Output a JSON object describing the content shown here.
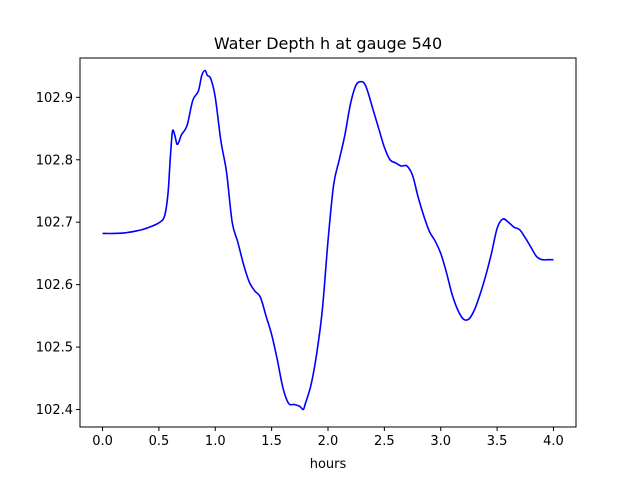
{
  "chart_data": {
    "type": "line",
    "title": "Water Depth h at gauge 540",
    "xlabel": "hours",
    "ylabel": "",
    "xlim": [
      -0.2,
      4.2
    ],
    "ylim": [
      102.372,
      102.963
    ],
    "xticks": [
      0.0,
      0.5,
      1.0,
      1.5,
      2.0,
      2.5,
      3.0,
      3.5,
      4.0
    ],
    "xtick_labels": [
      "0.0",
      "0.5",
      "1.0",
      "1.5",
      "2.0",
      "2.5",
      "3.0",
      "3.5",
      "4.0"
    ],
    "yticks": [
      102.4,
      102.5,
      102.6,
      102.7,
      102.8,
      102.9
    ],
    "ytick_labels": [
      "102.4",
      "102.5",
      "102.6",
      "102.7",
      "102.8",
      "102.9"
    ],
    "grid": false,
    "legend": "none",
    "series": [
      {
        "color": "#0000ff",
        "x": [
          0.0,
          0.1,
          0.2,
          0.3,
          0.4,
          0.5,
          0.55,
          0.58,
          0.6,
          0.62,
          0.64,
          0.66,
          0.68,
          0.7,
          0.75,
          0.8,
          0.85,
          0.88,
          0.91,
          0.93,
          0.96,
          1.0,
          1.05,
          1.1,
          1.15,
          1.2,
          1.25,
          1.3,
          1.35,
          1.4,
          1.45,
          1.5,
          1.55,
          1.6,
          1.65,
          1.7,
          1.75,
          1.78,
          1.8,
          1.85,
          1.9,
          1.95,
          2.0,
          2.05,
          2.1,
          2.15,
          2.2,
          2.25,
          2.3,
          2.33,
          2.36,
          2.4,
          2.45,
          2.5,
          2.55,
          2.6,
          2.65,
          2.7,
          2.75,
          2.8,
          2.85,
          2.9,
          2.95,
          3.0,
          3.05,
          3.1,
          3.15,
          3.2,
          3.25,
          3.3,
          3.35,
          3.4,
          3.45,
          3.5,
          3.55,
          3.6,
          3.65,
          3.7,
          3.75,
          3.8,
          3.85,
          3.9,
          3.95,
          4.0
        ],
        "y": [
          102.682,
          102.682,
          102.683,
          102.686,
          102.691,
          102.699,
          102.71,
          102.745,
          102.8,
          102.845,
          102.84,
          102.825,
          102.83,
          102.84,
          102.855,
          102.895,
          102.91,
          102.935,
          102.943,
          102.935,
          102.93,
          102.9,
          102.83,
          102.78,
          102.7,
          102.668,
          102.633,
          102.605,
          102.59,
          102.58,
          102.55,
          102.52,
          102.48,
          102.435,
          102.41,
          102.408,
          102.405,
          102.4,
          102.41,
          102.44,
          102.49,
          102.56,
          102.67,
          102.76,
          102.8,
          102.84,
          102.89,
          102.92,
          102.925,
          102.92,
          102.905,
          102.88,
          102.85,
          102.82,
          102.8,
          102.795,
          102.79,
          102.79,
          102.775,
          102.74,
          102.71,
          102.685,
          102.67,
          102.65,
          102.62,
          102.585,
          102.56,
          102.545,
          102.545,
          102.56,
          102.585,
          102.615,
          102.65,
          102.69,
          102.705,
          102.7,
          102.692,
          102.688,
          102.675,
          102.66,
          102.645,
          102.64,
          102.64,
          102.64
        ]
      }
    ]
  }
}
